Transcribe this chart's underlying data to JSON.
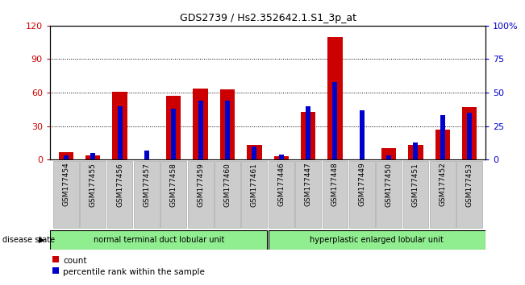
{
  "title": "GDS2739 / Hs2.352642.1.S1_3p_at",
  "samples": [
    "GSM177454",
    "GSM177455",
    "GSM177456",
    "GSM177457",
    "GSM177458",
    "GSM177459",
    "GSM177460",
    "GSM177461",
    "GSM177446",
    "GSM177447",
    "GSM177448",
    "GSM177449",
    "GSM177450",
    "GSM177451",
    "GSM177452",
    "GSM177453"
  ],
  "count_values": [
    7,
    4,
    61,
    0,
    57,
    64,
    63,
    13,
    3,
    43,
    110,
    0,
    10,
    13,
    27,
    47
  ],
  "percentile_values": [
    3,
    5,
    40,
    7,
    38,
    44,
    44,
    10,
    4,
    40,
    58,
    37,
    3,
    13,
    33,
    35
  ],
  "group1_label": "normal terminal duct lobular unit",
  "group2_label": "hyperplastic enlarged lobular unit",
  "group1_count": 8,
  "group2_count": 8,
  "disease_state_label": "disease state",
  "legend_count_label": "count",
  "legend_percentile_label": "percentile rank within the sample",
  "ylim_left": [
    0,
    120
  ],
  "ylim_right": [
    0,
    100
  ],
  "yticks_left": [
    0,
    30,
    60,
    90,
    120
  ],
  "ytick_labels_left": [
    "0",
    "30",
    "60",
    "90",
    "120"
  ],
  "yticks_right": [
    0,
    25,
    50,
    75,
    100
  ],
  "ytick_labels_right": [
    "0",
    "25",
    "50",
    "75",
    "100%"
  ],
  "bar_color_count": "#cc0000",
  "bar_color_percentile": "#0000cc",
  "group1_color": "#90ee90",
  "group2_color": "#90ee90",
  "bg_color": "#ffffff",
  "grid_color": "#000000",
  "tick_label_color_left": "#cc0000",
  "tick_label_color_right": "#0000cc",
  "xtick_bg_color": "#cccccc"
}
